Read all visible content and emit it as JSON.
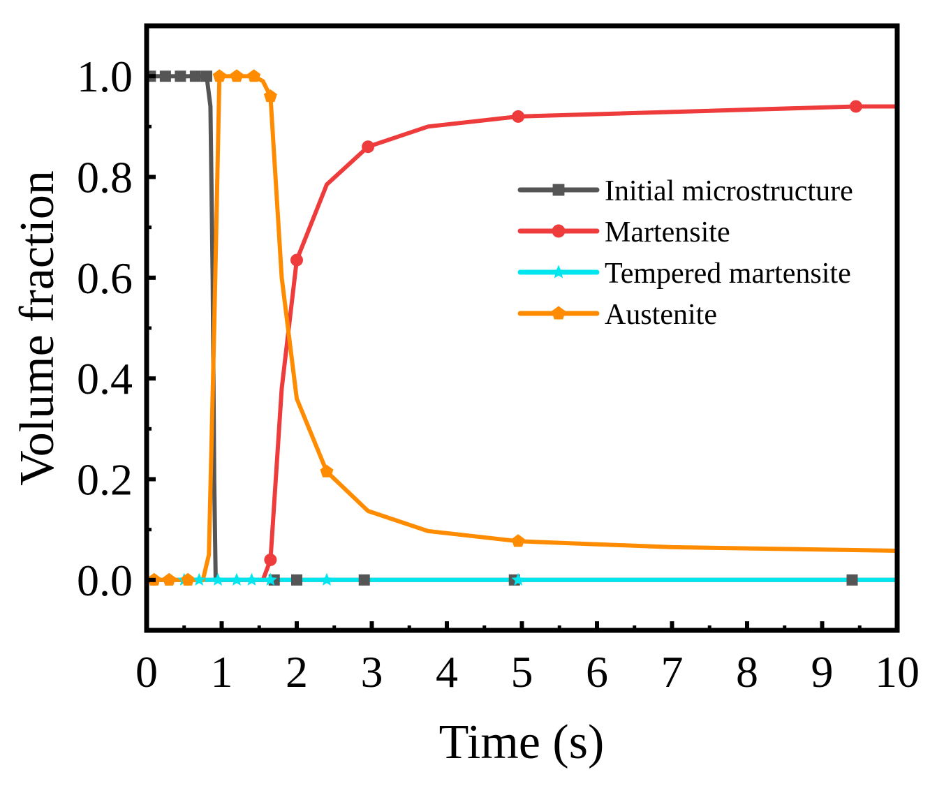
{
  "chart_data": {
    "type": "line",
    "title": "",
    "xlabel": "Time (s)",
    "ylabel": "Volume fraction",
    "xlim": [
      0,
      10
    ],
    "ylim": [
      -0.1,
      1.1
    ],
    "xticks": [
      0,
      1,
      2,
      3,
      4,
      5,
      6,
      7,
      8,
      9,
      10
    ],
    "xtick_labels": [
      "0",
      "1",
      "2",
      "3",
      "4",
      "5",
      "6",
      "7",
      "8",
      "9",
      "10"
    ],
    "yticks": [
      0.0,
      0.2,
      0.4,
      0.6,
      0.8,
      1.0
    ],
    "ytick_labels": [
      "0.0",
      "0.2",
      "0.4",
      "0.6",
      "0.8",
      "1.0"
    ],
    "grid": false,
    "legend_position": "right, upper-middle",
    "series": [
      {
        "name": "Initial microstructure",
        "color": "#555555",
        "marker": "square",
        "points": [
          [
            0.05,
            1.0
          ],
          [
            0.25,
            1.0
          ],
          [
            0.45,
            1.0
          ],
          [
            0.65,
            1.0
          ],
          [
            0.8,
            1.0
          ],
          [
            0.85,
            0.94
          ],
          [
            0.88,
            0.6
          ],
          [
            0.9,
            0.2
          ],
          [
            0.92,
            0.0
          ],
          [
            1.0,
            0.0
          ],
          [
            1.2,
            0.0
          ],
          [
            1.4,
            0.0
          ],
          [
            1.6,
            0.0
          ],
          [
            1.7,
            0.0
          ],
          [
            2.0,
            0.0
          ],
          [
            2.9,
            0.0
          ],
          [
            4.9,
            0.0
          ],
          [
            9.4,
            0.0
          ],
          [
            10.0,
            0.0
          ]
        ],
        "markers": [
          [
            0.05,
            1.0
          ],
          [
            0.25,
            1.0
          ],
          [
            0.45,
            1.0
          ],
          [
            0.65,
            1.0
          ],
          [
            0.8,
            1.0
          ],
          [
            1.7,
            0.0
          ],
          [
            2.0,
            0.0
          ],
          [
            2.9,
            0.0
          ],
          [
            4.9,
            0.0
          ],
          [
            9.4,
            0.0
          ]
        ]
      },
      {
        "name": "Martensite",
        "color": "#ee3b3b",
        "marker": "circle",
        "points": [
          [
            0.0,
            0.0
          ],
          [
            0.9,
            0.0
          ],
          [
            1.3,
            0.0
          ],
          [
            1.55,
            0.0
          ],
          [
            1.65,
            0.04
          ],
          [
            1.8,
            0.38
          ],
          [
            2.0,
            0.635
          ],
          [
            2.4,
            0.785
          ],
          [
            2.95,
            0.86
          ],
          [
            3.75,
            0.9
          ],
          [
            4.95,
            0.92
          ],
          [
            9.45,
            0.94
          ],
          [
            10.0,
            0.94
          ]
        ],
        "markers": [
          [
            1.65,
            0.04
          ],
          [
            2.0,
            0.635
          ],
          [
            2.95,
            0.86
          ],
          [
            4.95,
            0.92
          ],
          [
            9.45,
            0.94
          ]
        ]
      },
      {
        "name": "Tempered martensite",
        "color": "#00e5ee",
        "marker": "star",
        "points": [
          [
            0.0,
            0.0
          ],
          [
            10.0,
            0.0
          ]
        ],
        "markers": [
          [
            0.1,
            0.0
          ],
          [
            0.3,
            0.0
          ],
          [
            0.5,
            0.0
          ],
          [
            0.7,
            0.0
          ],
          [
            0.95,
            0.0
          ],
          [
            1.2,
            0.0
          ],
          [
            1.4,
            0.0
          ],
          [
            1.65,
            0.0
          ],
          [
            2.4,
            0.0
          ],
          [
            4.95,
            0.0
          ]
        ]
      },
      {
        "name": "Austenite",
        "color": "#ff8c00",
        "marker": "pentagon",
        "points": [
          [
            0.1,
            0.0
          ],
          [
            0.3,
            0.0
          ],
          [
            0.55,
            0.0
          ],
          [
            0.75,
            0.0
          ],
          [
            0.83,
            0.05
          ],
          [
            0.9,
            0.5
          ],
          [
            0.97,
            1.0
          ],
          [
            1.2,
            1.0
          ],
          [
            1.43,
            1.0
          ],
          [
            1.55,
            0.99
          ],
          [
            1.65,
            0.96
          ],
          [
            1.8,
            0.6
          ],
          [
            2.0,
            0.36
          ],
          [
            2.4,
            0.215
          ],
          [
            2.95,
            0.137
          ],
          [
            3.75,
            0.097
          ],
          [
            4.95,
            0.077
          ],
          [
            7.0,
            0.065
          ],
          [
            10.0,
            0.058
          ]
        ],
        "markers": [
          [
            0.1,
            0.0
          ],
          [
            0.3,
            0.0
          ],
          [
            0.55,
            0.0
          ],
          [
            0.97,
            1.0
          ],
          [
            1.2,
            1.0
          ],
          [
            1.43,
            1.0
          ],
          [
            1.65,
            0.96
          ],
          [
            2.4,
            0.215
          ],
          [
            4.95,
            0.077
          ]
        ]
      }
    ]
  }
}
